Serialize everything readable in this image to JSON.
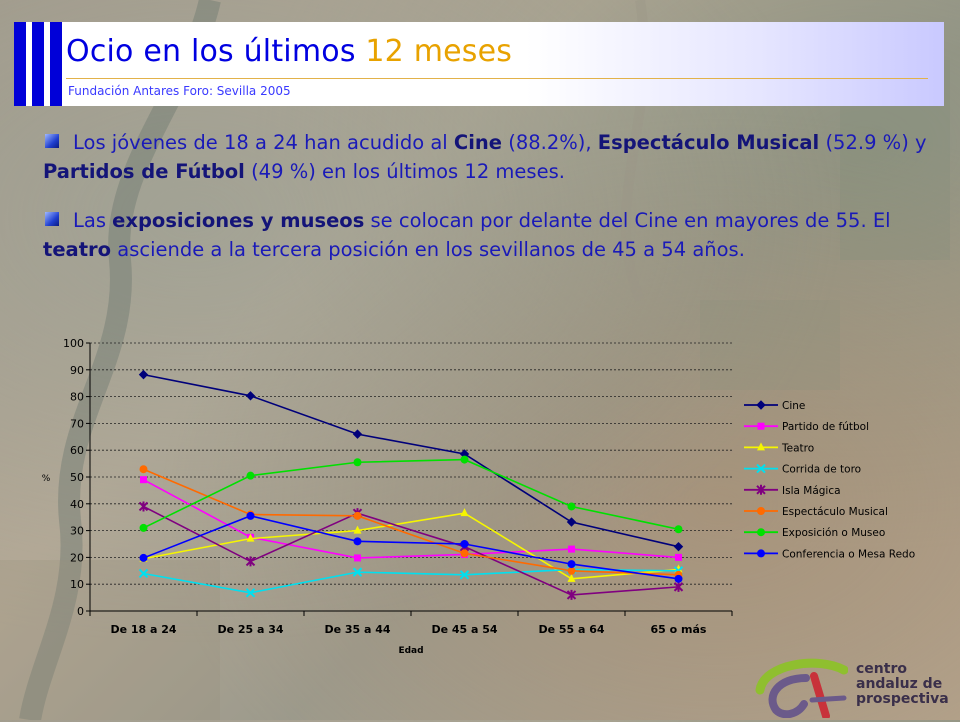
{
  "header": {
    "title_text": "Ocio en los últimos ",
    "title_number": "12 meses",
    "subtitle": "Fundación Antares Foro: Sevilla 2005"
  },
  "paragraphs": [
    {
      "parts": [
        {
          "t": "Los jóvenes de 18 a 24 han acudido al ",
          "b": false
        },
        {
          "t": "Cine",
          "b": true
        },
        {
          "t": " (88.2%), ",
          "b": false
        },
        {
          "t": "Espectáculo Musical",
          "b": true
        },
        {
          "t": " (52.9 %) y ",
          "b": false
        },
        {
          "t": "Partidos de Fútbol",
          "b": true
        },
        {
          "t": " (49 %) en los últimos 12 meses.",
          "b": false
        }
      ]
    },
    {
      "parts": [
        {
          "t": "Las ",
          "b": false
        },
        {
          "t": "exposiciones y museos",
          "b": true
        },
        {
          "t": " se colocan por delante del Cine en mayores de 55. El ",
          "b": false
        },
        {
          "t": "teatro",
          "b": true
        },
        {
          "t": " asciende a la tercera posición en los sevillanos de 45 a 54 años.",
          "b": false
        }
      ]
    }
  ],
  "chart_data": {
    "type": "line",
    "title": "",
    "xlabel": "Edad",
    "ylabel": "%",
    "ylim": [
      0,
      100
    ],
    "yticks": [
      0,
      10,
      20,
      30,
      40,
      50,
      60,
      70,
      80,
      90,
      100
    ],
    "grid": true,
    "legend_position": "right",
    "categories": [
      "De 18 a 24",
      "De 25 a 34",
      "De 35 a 44",
      "De 45 a 54",
      "De 55 a 64",
      "65 o más"
    ],
    "series": [
      {
        "name": "Cine",
        "color": "#00007a",
        "marker": "diamond",
        "values": [
          88.2,
          80.3,
          66.0,
          58.6,
          33.2,
          24.0
        ]
      },
      {
        "name": "Partido de fútbol",
        "color": "#ff00ff",
        "marker": "square",
        "values": [
          49.0,
          27.5,
          19.8,
          21.1,
          23.1,
          20.0
        ]
      },
      {
        "name": "Teatro",
        "color": "#f6f600",
        "marker": "triangle",
        "values": [
          19.5,
          27.0,
          30.0,
          36.5,
          12.0,
          15.5
        ]
      },
      {
        "name": "Corrida de toro",
        "color": "#00e0f0",
        "marker": "x",
        "values": [
          14.0,
          6.8,
          14.5,
          13.5,
          15.5,
          15.0
        ]
      },
      {
        "name": "Isla Mágica",
        "color": "#800080",
        "marker": "star",
        "values": [
          39.0,
          18.5,
          36.5,
          24.0,
          6.0,
          9.0
        ]
      },
      {
        "name": "Espectáculo Musical",
        "color": "#ff6a00",
        "marker": "circle",
        "values": [
          52.9,
          36.0,
          35.5,
          21.5,
          15.0,
          13.5
        ]
      },
      {
        "name": "Exposición o Museo",
        "color": "#00e000",
        "marker": "plus",
        "values": [
          31.0,
          50.5,
          55.5,
          56.5,
          39.0,
          30.5
        ]
      },
      {
        "name": "Conferencia o Mesa Redonda",
        "color": "#0000ff",
        "marker": "dash",
        "values": [
          19.8,
          35.5,
          26.0,
          25.0,
          17.5,
          12.0
        ]
      }
    ]
  },
  "logo": {
    "line1": "centro",
    "line2": "andaluz de",
    "line3": "prospectiva",
    "colors": [
      "#8fbf2f",
      "#6b5a8a",
      "#c8323a"
    ]
  }
}
